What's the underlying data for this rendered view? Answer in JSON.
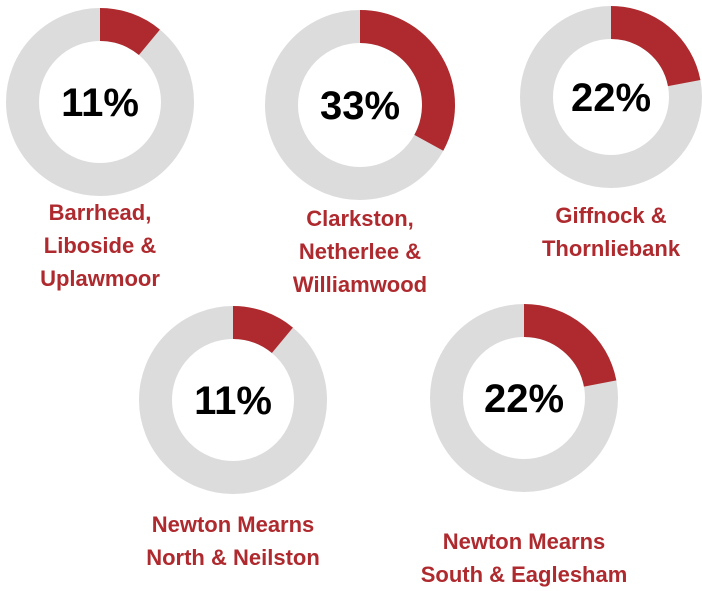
{
  "chart_data": {
    "type": "pie",
    "style": "donut",
    "colors": {
      "filled": "#ae2a2e",
      "remainder": "#dcdcdc",
      "label": "#ae2a2e"
    },
    "items": [
      {
        "name": "Barrhead, Liboside & Uplawmoor",
        "label_lines": [
          "Barrhead,",
          "Liboside &",
          "Uplawmoor"
        ],
        "value": 11,
        "display": "11%"
      },
      {
        "name": "Clarkston, Netherlee & Williamwood",
        "label_lines": [
          "Clarkston,",
          "Netherlee &",
          "Williamwood"
        ],
        "value": 33,
        "display": "33%"
      },
      {
        "name": "Giffnock & Thornliebank",
        "label_lines": [
          "Giffnock &",
          "Thornliebank"
        ],
        "value": 22,
        "display": "22%"
      },
      {
        "name": "Newton Mearns North & Neilston",
        "label_lines": [
          "Newton Mearns",
          "North & Neilston"
        ],
        "value": 11,
        "display": "11%"
      },
      {
        "name": "Newton Mearns South & Eaglesham",
        "label_lines": [
          "Newton Mearns",
          "South & Eaglesham"
        ],
        "value": 22,
        "display": "22%"
      }
    ]
  }
}
